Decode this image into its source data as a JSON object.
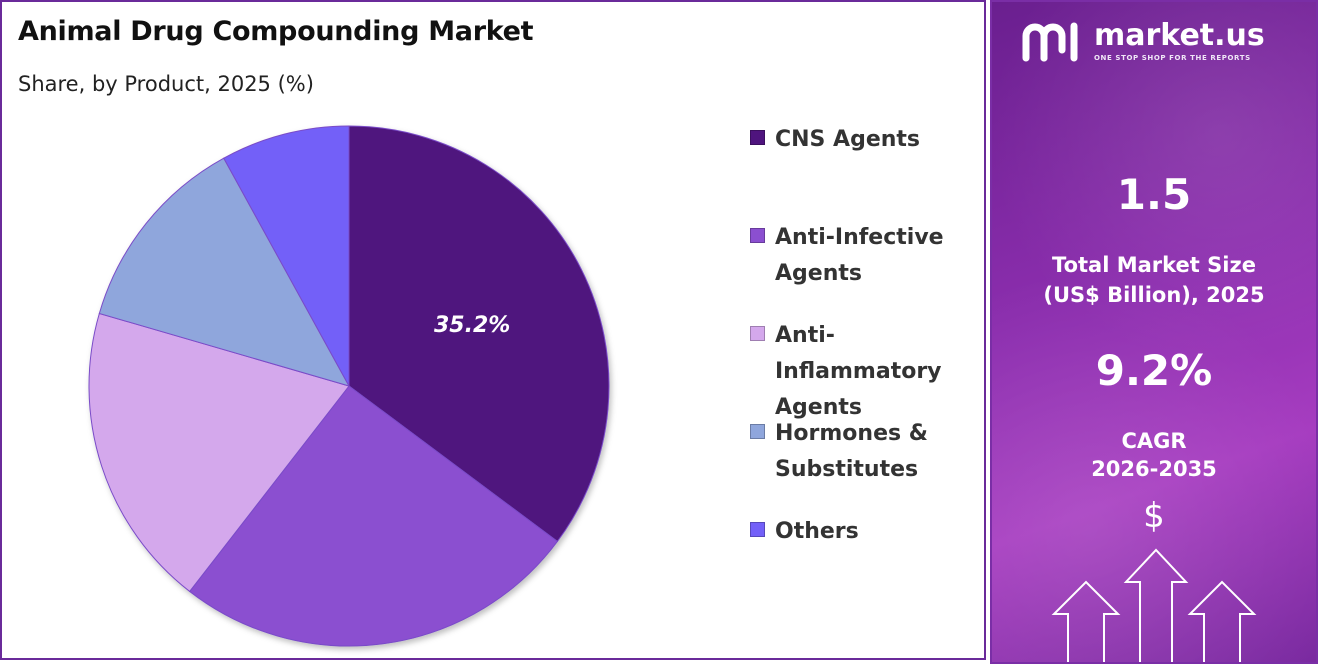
{
  "title": "Animal Drug Compounding Market",
  "subtitle": "Share, by Product, 2025 (%)",
  "chart_data": {
    "type": "pie",
    "categories": [
      "CNS Agents",
      "Anti-Infective Agents",
      "Anti-Inflammatory Agents",
      "Hormones & Substitutes",
      "Others"
    ],
    "values": [
      35.2,
      25.3,
      19.0,
      12.5,
      8.0
    ],
    "colors": [
      "#4f147e",
      "#8b4fd0",
      "#d4a8ec",
      "#8fa6dc",
      "#7360f8"
    ],
    "data_labels": [
      "35.2%",
      "",
      "",
      "",
      ""
    ],
    "legend_position": "right",
    "legend_labels": [
      [
        "CNS Agents"
      ],
      [
        "Anti-Infective",
        "Agents"
      ],
      [
        "Anti-",
        "Inflammatory",
        "Agents"
      ],
      [
        "Hormones &",
        "Substitutes"
      ],
      [
        "Others"
      ]
    ]
  },
  "side_panel": {
    "brand_name": "market.us",
    "brand_tagline": "ONE STOP SHOP FOR THE REPORTS",
    "market_size_value": "1.5",
    "market_size_label_line1": "Total Market Size",
    "market_size_label_line2": "(US$ Billion), 2025",
    "cagr_value": "9.2%",
    "cagr_label_line1": "CAGR",
    "cagr_label_line2": "2026-2035",
    "currency_symbol": "$",
    "icons": [
      "dollar-icon",
      "up-arrow-icon"
    ]
  }
}
